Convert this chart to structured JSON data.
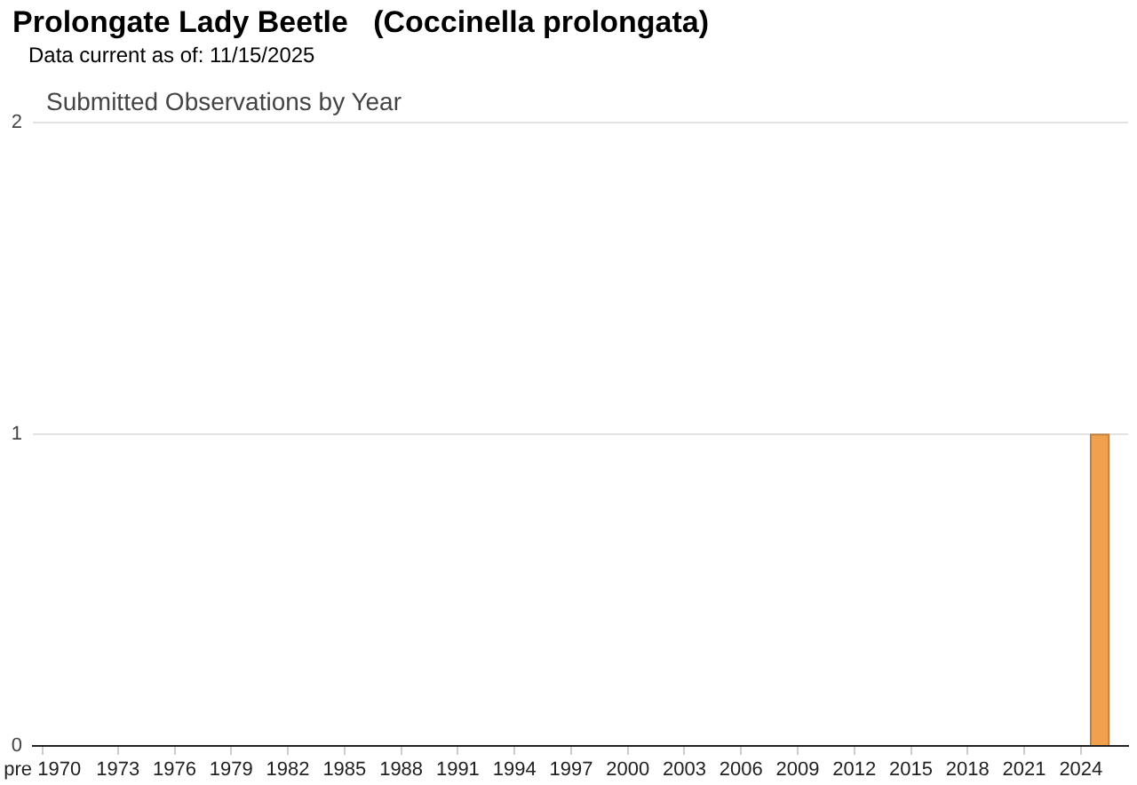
{
  "chart_data": {
    "type": "bar",
    "title": "Prolongate Lady Beetle   (Coccinella prolongata)",
    "subtitle": "Submitted Observations by Year",
    "annotations": [
      "Data current as of: 11/15/2025"
    ],
    "categories": [
      "pre 1970",
      null,
      null,
      null,
      "1973",
      null,
      null,
      "1976",
      null,
      null,
      "1979",
      null,
      null,
      "1982",
      null,
      null,
      "1985",
      null,
      null,
      "1988",
      null,
      null,
      "1991",
      null,
      null,
      "1994",
      null,
      null,
      "1997",
      null,
      null,
      "2000",
      null,
      null,
      "2003",
      null,
      null,
      "2006",
      null,
      null,
      "2009",
      null,
      null,
      "2012",
      null,
      null,
      "2015",
      null,
      null,
      "2018",
      null,
      null,
      "2021",
      null,
      null,
      "2024",
      null,
      null
    ],
    "values": [
      0,
      0,
      0,
      0,
      0,
      0,
      0,
      0,
      0,
      0,
      0,
      0,
      0,
      0,
      0,
      0,
      0,
      0,
      0,
      0,
      0,
      0,
      0,
      0,
      0,
      0,
      0,
      0,
      0,
      0,
      0,
      0,
      0,
      0,
      0,
      0,
      0,
      0,
      0,
      0,
      0,
      0,
      0,
      0,
      0,
      0,
      0,
      0,
      0,
      0,
      0,
      0,
      0,
      0,
      0,
      0,
      1,
      0
    ],
    "color": "#f1a04e",
    "ylim": [
      0,
      2
    ],
    "yticks": [
      0,
      1,
      2
    ],
    "grid": "y"
  }
}
